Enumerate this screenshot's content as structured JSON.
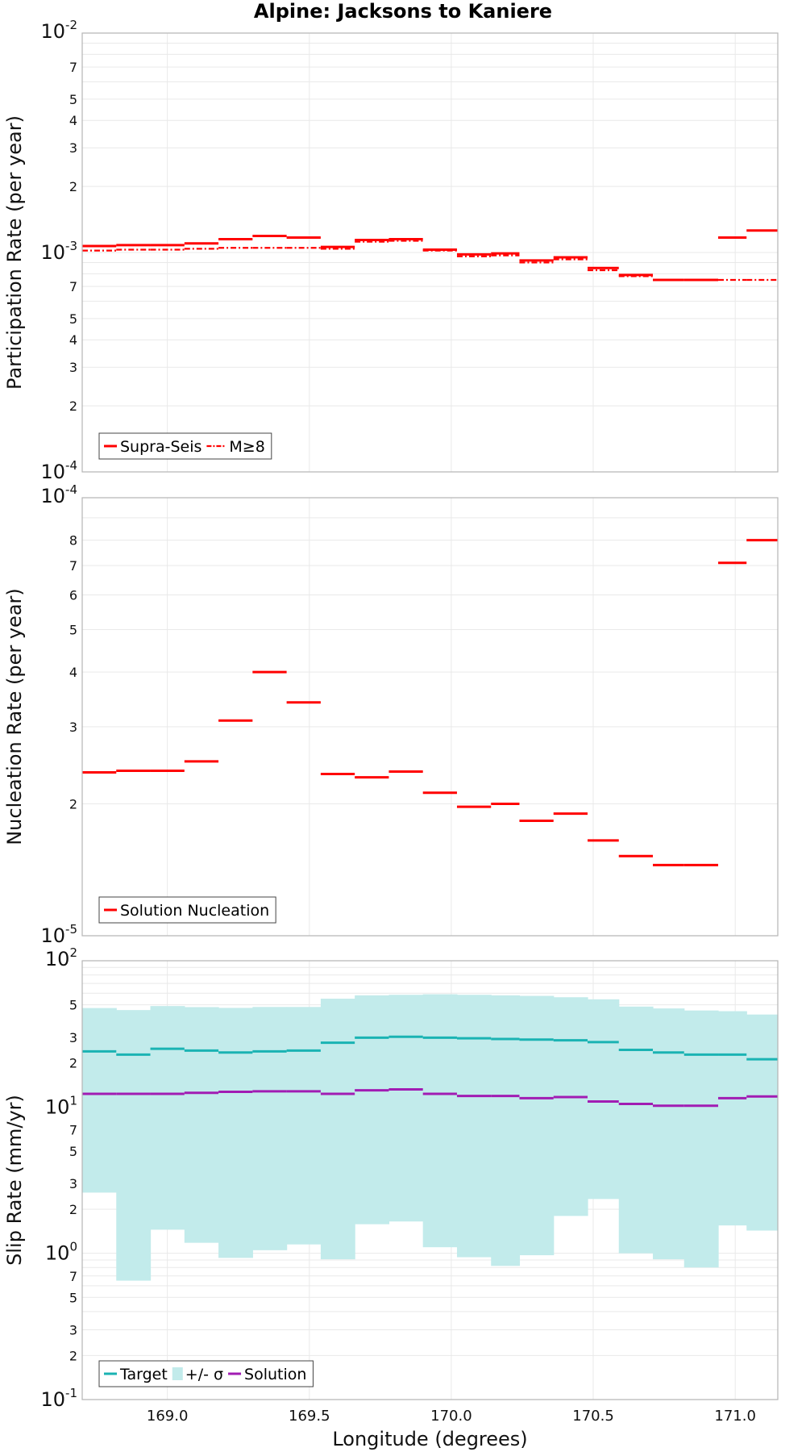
{
  "figure_title": "Alpine: Jacksons to Kaniere",
  "colors": {
    "supra": "#ff0000",
    "target": "#1ab3b3",
    "band": "#c2ebeb",
    "solution": "#a11cb3"
  },
  "chart_data": [
    {
      "type": "line",
      "title": "Alpine: Jacksons to Kaniere",
      "xlabel": "",
      "ylabel": "Participation Rate (per year)",
      "yscale": "log",
      "ylim": [
        0.0001,
        0.01
      ],
      "y_tick_labels": {
        "major": [
          {
            "base": "10",
            "exp": "-4"
          },
          {
            "base": "10",
            "exp": "-3"
          },
          {
            "base": "10",
            "exp": "-2"
          }
        ],
        "minor": [
          "2",
          "3",
          "4",
          "5",
          "7",
          "2",
          "3",
          "4",
          "5",
          "7"
        ]
      },
      "xlim": [
        168.7,
        171.15
      ],
      "grid": true,
      "legend_position": "bottom-left",
      "segments": [
        [
          168.7,
          168.82
        ],
        [
          168.82,
          168.94
        ],
        [
          168.94,
          169.06
        ],
        [
          169.06,
          169.18
        ],
        [
          169.18,
          169.3
        ],
        [
          169.3,
          169.42
        ],
        [
          169.42,
          169.54
        ],
        [
          169.54,
          169.66
        ],
        [
          169.66,
          169.78
        ],
        [
          169.78,
          169.9
        ],
        [
          169.9,
          170.02
        ],
        [
          170.02,
          170.14
        ],
        [
          170.14,
          170.24
        ],
        [
          170.24,
          170.36
        ],
        [
          170.36,
          170.48
        ],
        [
          170.48,
          170.59
        ],
        [
          170.59,
          170.71
        ],
        [
          170.71,
          170.82
        ],
        [
          170.82,
          170.94
        ],
        [
          170.94,
          171.04
        ],
        [
          171.04,
          171.15
        ]
      ],
      "series": [
        {
          "name": "Supra-Seis",
          "style": "solid",
          "values": [
            0.00107,
            0.00108,
            0.00108,
            0.0011,
            0.00115,
            0.00119,
            0.00117,
            0.00106,
            0.00114,
            0.00115,
            0.00103,
            0.00098,
            0.00099,
            0.00092,
            0.00095,
            0.00085,
            0.00079,
            0.00075,
            0.00075,
            0.00117,
            0.00126
          ]
        },
        {
          "name": "M≥8",
          "style": "dash-dot",
          "values": [
            0.00102,
            0.00103,
            0.00103,
            0.00104,
            0.00105,
            0.00105,
            0.00105,
            0.00104,
            0.00112,
            0.00113,
            0.00102,
            0.00096,
            0.00097,
            0.0009,
            0.00093,
            0.00083,
            0.00078,
            0.00075,
            0.00075,
            0.00075,
            0.00075
          ]
        }
      ],
      "legend": [
        {
          "label": "Supra-Seis",
          "style": "solid"
        },
        {
          "label": "M≥8",
          "style": "dash-dot"
        }
      ]
    },
    {
      "type": "line",
      "xlabel": "",
      "ylabel": "Nucleation Rate (per year)",
      "yscale": "log",
      "ylim": [
        1e-05,
        0.0001
      ],
      "y_tick_labels": {
        "major": [
          {
            "base": "10",
            "exp": "-5"
          },
          {
            "base": "10",
            "exp": "-4"
          }
        ],
        "minor": [
          "2",
          "3",
          "4",
          "5",
          "6",
          "7",
          "8"
        ]
      },
      "xlim": [
        168.7,
        171.15
      ],
      "grid": true,
      "legend_position": "bottom-left",
      "series": [
        {
          "name": "Solution Nucleation",
          "values": [
            2.36e-05,
            2.38e-05,
            2.38e-05,
            2.5e-05,
            3.1e-05,
            4e-05,
            3.41e-05,
            2.34e-05,
            2.3e-05,
            2.37e-05,
            2.12e-05,
            1.97e-05,
            2e-05,
            1.83e-05,
            1.9e-05,
            1.65e-05,
            1.52e-05,
            1.45e-05,
            1.45e-05,
            7.1e-05,
            8e-05
          ]
        }
      ],
      "legend": [
        {
          "label": "Solution Nucleation",
          "style": "solid"
        }
      ]
    },
    {
      "type": "area",
      "xlabel": "Longitude (degrees)",
      "ylabel": "Slip Rate (mm/yr)",
      "yscale": "log",
      "ylim": [
        0.1,
        100
      ],
      "y_tick_labels": {
        "major": [
          {
            "base": "10",
            "exp": "-1"
          },
          {
            "base": "10",
            "exp": "0"
          },
          {
            "base": "10",
            "exp": "1"
          },
          {
            "base": "10",
            "exp": "2"
          }
        ],
        "minor": [
          "2",
          "3",
          "5",
          "7",
          "2",
          "3",
          "5",
          "7",
          "2",
          "3",
          "5"
        ]
      },
      "xlim": [
        168.7,
        171.15
      ],
      "x_ticks": [
        "169.0",
        "169.5",
        "170.0",
        "170.5",
        "171.0"
      ],
      "grid": true,
      "legend_position": "bottom-left",
      "series": [
        {
          "name": "Target",
          "values": [
            24.0,
            22.8,
            25.0,
            24.3,
            23.6,
            24.0,
            24.3,
            27.5,
            29.8,
            30.2,
            29.8,
            29.5,
            29.2,
            28.9,
            28.6,
            27.8,
            24.6,
            23.6,
            22.8,
            22.8,
            21.2
          ]
        },
        {
          "name": "+/- σ",
          "lower": [
            2.6,
            0.65,
            1.45,
            1.18,
            0.93,
            1.05,
            1.15,
            0.91,
            1.58,
            1.65,
            1.1,
            0.94,
            0.82,
            0.97,
            1.8,
            2.35,
            1.0,
            0.91,
            0.8,
            1.55,
            1.43
          ],
          "upper": [
            47.5,
            46.0,
            49.0,
            48.2,
            47.6,
            48.3,
            48.3,
            55.0,
            58.0,
            58.5,
            59.0,
            58.5,
            58.0,
            57.5,
            56.3,
            54.5,
            48.6,
            47.2,
            45.7,
            45.2,
            42.9
          ]
        },
        {
          "name": "Solution",
          "values": [
            12.3,
            12.3,
            12.3,
            12.5,
            12.7,
            12.8,
            12.8,
            12.3,
            13.0,
            13.2,
            12.3,
            11.9,
            11.9,
            11.5,
            11.7,
            10.9,
            10.5,
            10.2,
            10.2,
            11.5,
            11.8
          ]
        }
      ],
      "legend": [
        {
          "label": "Target",
          "style": "line"
        },
        {
          "label": "+/- σ",
          "style": "band"
        },
        {
          "label": "Solution",
          "style": "line"
        }
      ]
    }
  ]
}
